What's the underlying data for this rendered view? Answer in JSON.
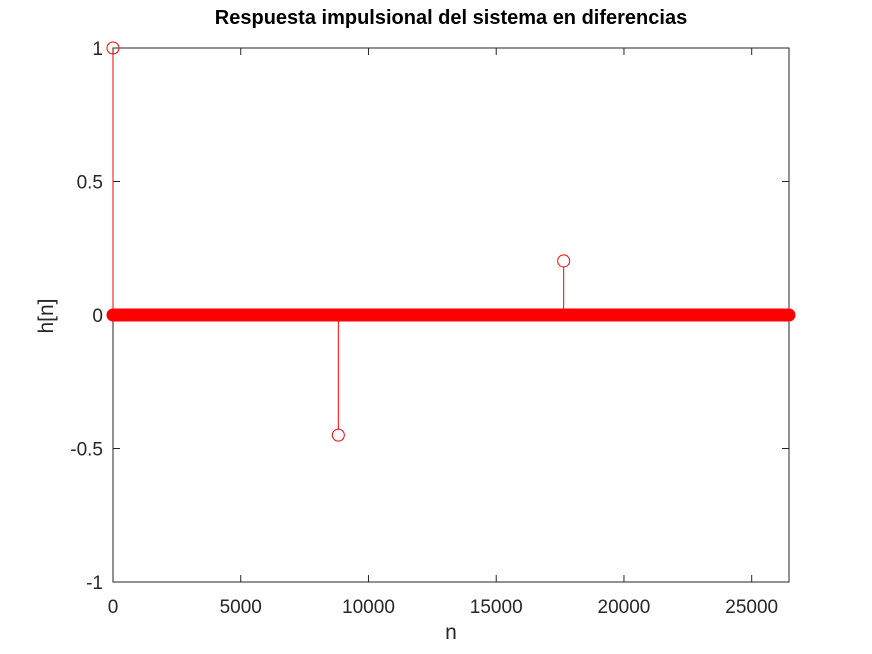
{
  "chart_data": {
    "type": "stem",
    "title": "Respuesta impulsional del sistema en diferencias",
    "xlabel": "n",
    "ylabel": "h[n]",
    "xlim": [
      0,
      26460
    ],
    "ylim": [
      -1,
      1
    ],
    "xticks": [
      0,
      5000,
      10000,
      15000,
      20000,
      25000
    ],
    "xtick_labels": [
      "0",
      "5000",
      "10000",
      "15000",
      "20000",
      "25000"
    ],
    "yticks": [
      -1,
      -0.5,
      0,
      0.5,
      1
    ],
    "ytick_labels": [
      "-1",
      "-0.5",
      "0",
      "0.5",
      "1"
    ],
    "series_color": "#ff0000",
    "n_samples": 26460,
    "baseline_value": 0,
    "nonzero_points": [
      {
        "x": 0,
        "y": 1
      },
      {
        "x": 8820,
        "y": -0.45
      },
      {
        "x": 17640,
        "y": 0.2025
      }
    ],
    "grid": false,
    "legend": "none"
  }
}
